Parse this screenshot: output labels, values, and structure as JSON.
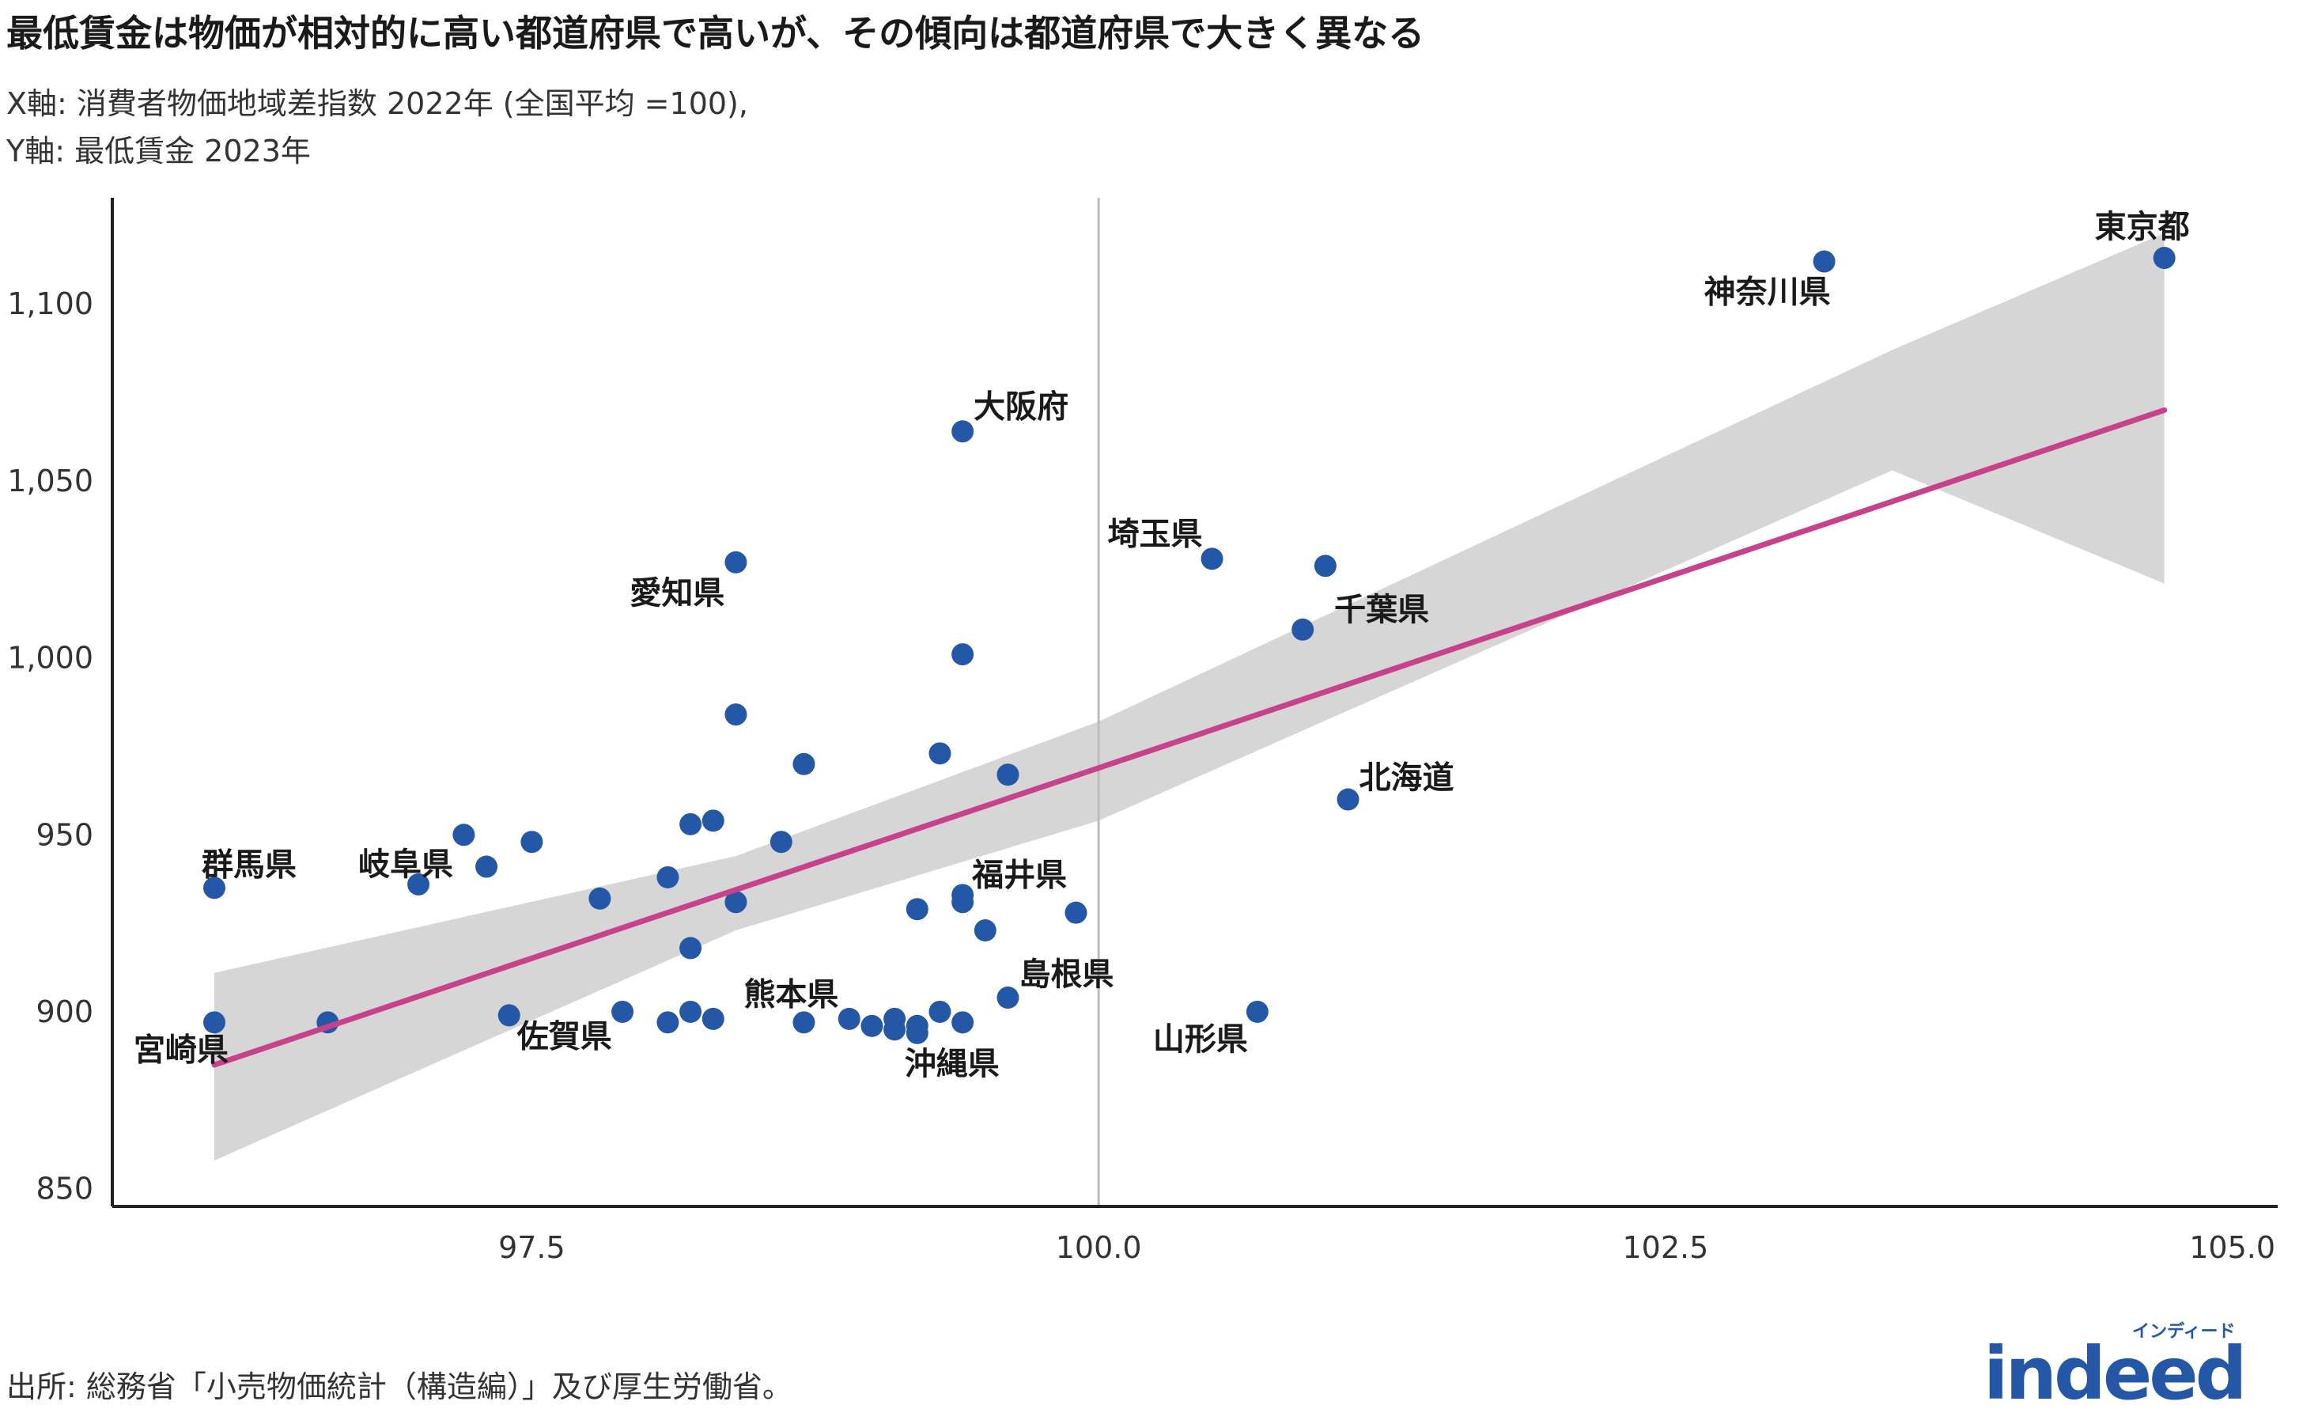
{
  "header": {
    "title": "最低賃金は物価が相対的に高い都道府県で高いが、その傾向は都道府県で大きく異なる",
    "xaxis_desc": "X軸: 消費者物価地域差指数 2022年 (全国平均 =100),",
    "yaxis_desc": "Y軸: 最低賃金 2023年"
  },
  "footer": {
    "source": "出所: 総務省「小売物価統計（構造編）」及び厚生労働省。"
  },
  "logo": {
    "wordmark": "indeed",
    "kana": "インディード",
    "color": "#2557a7"
  },
  "colors": {
    "point": "#2557a7",
    "trend": "#c7428a",
    "band": "#d6d6d6",
    "refline": "#bdbdbd"
  },
  "chart_data": {
    "type": "scatter",
    "xlim": [
      95.65,
      105.2
    ],
    "ylim": [
      845,
      1130
    ],
    "xticks": [
      97.5,
      100.0,
      102.5,
      105.0
    ],
    "xtick_labels": [
      "97.5",
      "100.0",
      "102.5",
      "105.0"
    ],
    "yticks": [
      850,
      900,
      950,
      1000,
      1050,
      1100
    ],
    "ytick_labels": [
      "850",
      "900",
      "950",
      "1,000",
      "1,050",
      "1,100"
    ],
    "reference_x": 100.0,
    "grid": false,
    "trend": {
      "x": [
        96.1,
        104.7
      ],
      "y": [
        885,
        1070
      ]
    },
    "band": {
      "upper": [
        [
          96.1,
          911
        ],
        [
          98.4,
          944
        ],
        [
          100.0,
          982
        ],
        [
          103.5,
          1087
        ],
        [
          104.7,
          1120
        ]
      ],
      "lower": [
        [
          96.1,
          858
        ],
        [
          98.4,
          923
        ],
        [
          100.0,
          954
        ],
        [
          103.5,
          1053
        ],
        [
          104.7,
          1021
        ]
      ]
    },
    "points": [
      {
        "x": 104.7,
        "y": 1113,
        "label": "東京都"
      },
      {
        "x": 103.2,
        "y": 1112,
        "label": "神奈川県"
      },
      {
        "x": 99.4,
        "y": 1064,
        "label": "大阪府"
      },
      {
        "x": 100.5,
        "y": 1028,
        "label": "埼玉県"
      },
      {
        "x": 101.0,
        "y": 1026,
        "label": ""
      },
      {
        "x": 100.9,
        "y": 1008,
        "label": "千葉県"
      },
      {
        "x": 98.4,
        "y": 1027,
        "label": "愛知県"
      },
      {
        "x": 99.4,
        "y": 1001,
        "label": ""
      },
      {
        "x": 98.4,
        "y": 984,
        "label": ""
      },
      {
        "x": 99.3,
        "y": 973,
        "label": ""
      },
      {
        "x": 98.7,
        "y": 970,
        "label": ""
      },
      {
        "x": 99.6,
        "y": 967,
        "label": ""
      },
      {
        "x": 101.1,
        "y": 960,
        "label": "北海道"
      },
      {
        "x": 98.2,
        "y": 953,
        "label": ""
      },
      {
        "x": 98.3,
        "y": 954,
        "label": ""
      },
      {
        "x": 97.2,
        "y": 950,
        "label": ""
      },
      {
        "x": 97.5,
        "y": 948,
        "label": ""
      },
      {
        "x": 98.6,
        "y": 948,
        "label": ""
      },
      {
        "x": 97.3,
        "y": 941,
        "label": ""
      },
      {
        "x": 98.1,
        "y": 938,
        "label": ""
      },
      {
        "x": 97.0,
        "y": 936,
        "label": "岐阜県"
      },
      {
        "x": 96.1,
        "y": 935,
        "label": "群馬県"
      },
      {
        "x": 99.4,
        "y": 933,
        "label": "福井県"
      },
      {
        "x": 97.8,
        "y": 932,
        "label": ""
      },
      {
        "x": 98.4,
        "y": 931,
        "label": ""
      },
      {
        "x": 99.4,
        "y": 931,
        "label": ""
      },
      {
        "x": 99.2,
        "y": 929,
        "label": ""
      },
      {
        "x": 99.9,
        "y": 928,
        "label": ""
      },
      {
        "x": 99.5,
        "y": 923,
        "label": ""
      },
      {
        "x": 98.2,
        "y": 918,
        "label": ""
      },
      {
        "x": 99.6,
        "y": 904,
        "label": "島根県"
      },
      {
        "x": 100.7,
        "y": 900,
        "label": "山形県"
      },
      {
        "x": 97.4,
        "y": 899,
        "label": "佐賀県"
      },
      {
        "x": 97.9,
        "y": 900,
        "label": ""
      },
      {
        "x": 98.2,
        "y": 900,
        "label": ""
      },
      {
        "x": 98.3,
        "y": 898,
        "label": ""
      },
      {
        "x": 98.1,
        "y": 897,
        "label": ""
      },
      {
        "x": 98.7,
        "y": 897,
        "label": "熊本県"
      },
      {
        "x": 98.9,
        "y": 898,
        "label": ""
      },
      {
        "x": 99.0,
        "y": 896,
        "label": ""
      },
      {
        "x": 99.1,
        "y": 898,
        "label": ""
      },
      {
        "x": 99.1,
        "y": 895,
        "label": ""
      },
      {
        "x": 99.2,
        "y": 896,
        "label": ""
      },
      {
        "x": 99.3,
        "y": 900,
        "label": ""
      },
      {
        "x": 99.2,
        "y": 894,
        "label": "沖縄県"
      },
      {
        "x": 99.4,
        "y": 897,
        "label": ""
      },
      {
        "x": 96.6,
        "y": 897,
        "label": ""
      },
      {
        "x": 96.1,
        "y": 897,
        "label": "宮崎県"
      }
    ]
  }
}
